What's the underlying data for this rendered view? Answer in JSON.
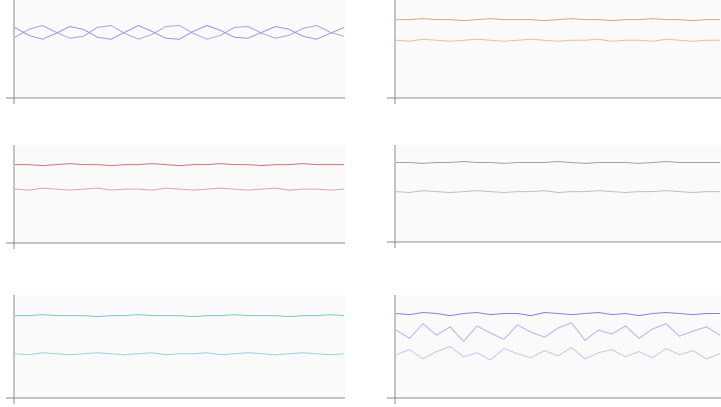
{
  "chart_data": [
    {
      "type": "line",
      "ylim": [
        0,
        100
      ],
      "series": [
        {
          "color": "#8c8ce6",
          "values": [
            72,
            64,
            60,
            66,
            73,
            70,
            62,
            60,
            67,
            74,
            68,
            61,
            60,
            68,
            74,
            69,
            62,
            61,
            67,
            73,
            70,
            63,
            60,
            66,
            72
          ]
        },
        {
          "color": "#9a9ae8",
          "values": [
            62,
            70,
            74,
            67,
            61,
            63,
            72,
            74,
            66,
            60,
            65,
            73,
            74,
            66,
            60,
            64,
            72,
            73,
            66,
            61,
            64,
            71,
            74,
            67,
            63
          ]
        }
      ]
    },
    {
      "type": "line",
      "ylim": [
        0,
        100
      ],
      "series": [
        {
          "color": "#d9a060",
          "values": [
            80,
            80,
            81,
            80,
            80,
            79,
            80,
            81,
            80,
            80,
            80,
            79,
            80,
            81,
            80,
            80,
            79,
            80,
            80,
            81,
            80,
            80,
            79,
            80,
            80
          ]
        },
        {
          "color": "#e6bc88",
          "values": [
            59,
            58,
            60,
            59,
            58,
            59,
            60,
            59,
            58,
            59,
            60,
            59,
            58,
            59,
            59,
            60,
            58,
            59,
            59,
            58,
            60,
            59,
            58,
            59,
            59
          ]
        }
      ]
    },
    {
      "type": "line",
      "ylim": [
        0,
        100
      ],
      "series": [
        {
          "color": "#d06464",
          "values": [
            80,
            80,
            79,
            80,
            81,
            80,
            80,
            79,
            80,
            80,
            81,
            80,
            79,
            80,
            80,
            81,
            80,
            80,
            79,
            80,
            80,
            81,
            80,
            80,
            80
          ]
        },
        {
          "color": "#e39a9a",
          "values": [
            55,
            54,
            56,
            55,
            54,
            55,
            56,
            54,
            55,
            55,
            54,
            56,
            55,
            54,
            55,
            56,
            55,
            54,
            55,
            56,
            54,
            55,
            55,
            54,
            55
          ]
        }
      ]
    },
    {
      "type": "line",
      "ylim": [
        0,
        100
      ],
      "series": [
        {
          "color": "#9a94a4",
          "values": [
            82,
            82,
            81,
            82,
            82,
            83,
            82,
            82,
            81,
            82,
            82,
            82,
            83,
            82,
            81,
            82,
            82,
            82,
            81,
            82,
            83,
            82,
            82,
            82,
            82
          ]
        },
        {
          "color": "#c4aecc",
          "values": [
            52,
            51,
            53,
            52,
            51,
            52,
            53,
            52,
            51,
            52,
            52,
            53,
            51,
            52,
            52,
            53,
            52,
            51,
            52,
            52,
            53,
            52,
            51,
            52,
            52
          ]
        }
      ]
    },
    {
      "type": "line",
      "ylim": [
        0,
        100
      ],
      "series": [
        {
          "color": "#6cc4d4",
          "values": [
            80,
            80,
            81,
            80,
            80,
            80,
            79,
            80,
            80,
            81,
            80,
            80,
            80,
            79,
            80,
            80,
            81,
            80,
            80,
            80,
            79,
            80,
            80,
            81,
            80
          ]
        },
        {
          "color": "#8ad2de",
          "values": [
            43,
            42,
            44,
            43,
            42,
            43,
            44,
            43,
            42,
            43,
            44,
            42,
            43,
            43,
            44,
            42,
            43,
            44,
            43,
            42,
            43,
            44,
            43,
            42,
            43
          ]
        }
      ]
    },
    {
      "type": "line",
      "ylim": [
        0,
        100
      ],
      "series": [
        {
          "color": "#7c70e0",
          "values": [
            82,
            81,
            83,
            82,
            80,
            82,
            83,
            81,
            82,
            82,
            80,
            83,
            82,
            81,
            82,
            83,
            81,
            82,
            80,
            82,
            83,
            82,
            81,
            82,
            82
          ]
        },
        {
          "color": "#b0a8ee",
          "values": [
            66,
            58,
            72,
            61,
            69,
            55,
            70,
            63,
            57,
            71,
            64,
            59,
            68,
            73,
            56,
            66,
            62,
            70,
            58,
            67,
            72,
            60,
            65,
            69,
            61
          ]
        },
        {
          "color": "#c4bef2",
          "values": [
            42,
            47,
            38,
            45,
            50,
            40,
            44,
            37,
            48,
            43,
            39,
            46,
            41,
            49,
            38,
            44,
            47,
            40,
            45,
            39,
            48,
            42,
            46,
            38,
            43
          ]
        }
      ]
    }
  ]
}
